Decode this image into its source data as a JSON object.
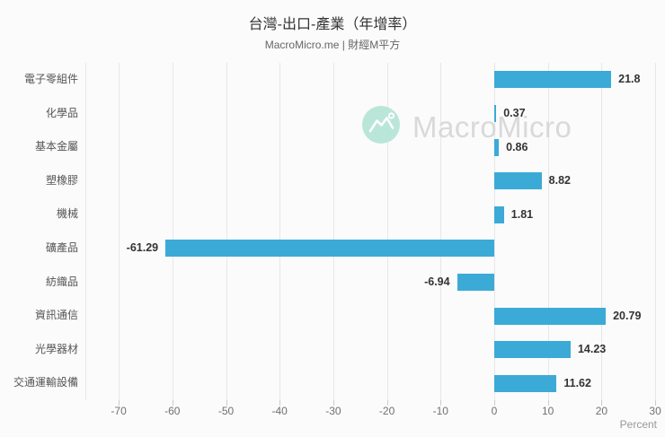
{
  "header": {
    "title": "台灣-出口-產業（年增率）",
    "subtitle": "MacroMicro.me | 財經M平方"
  },
  "watermark": {
    "text": "MacroMicro",
    "logo_icon": "macromicro-mountain-logo",
    "circle_color": "#b9e6d8",
    "text_color": "#d9d9d9"
  },
  "chart_data": {
    "type": "bar",
    "orientation": "horizontal",
    "title": "台灣-出口-產業（年增率）",
    "subtitle": "MacroMicro.me | 財經M平方",
    "categories": [
      "電子零組件",
      "化學品",
      "基本金屬",
      "塑橡膠",
      "機械",
      "礦產品",
      "紡織品",
      "資訊通信",
      "光學器材",
      "交通運輸設備"
    ],
    "values": [
      21.8,
      0.37,
      0.86,
      8.82,
      1.81,
      -61.29,
      -6.94,
      20.79,
      14.23,
      11.62
    ],
    "value_labels": [
      "21.8",
      "0.37",
      "0.86",
      "8.82",
      "1.81",
      "-61.29",
      "-6.94",
      "20.79",
      "14.23",
      "11.62"
    ],
    "xlabel": "Percent",
    "xticks": [
      -70,
      -60,
      -50,
      -40,
      -30,
      -20,
      -10,
      0,
      10,
      20,
      30
    ],
    "xlim": [
      -76,
      30
    ],
    "grid": true,
    "legend": false,
    "bar_color": "#3caad6",
    "background_color": "#fbfbfb",
    "gridline_color": "#e7e7e7"
  }
}
